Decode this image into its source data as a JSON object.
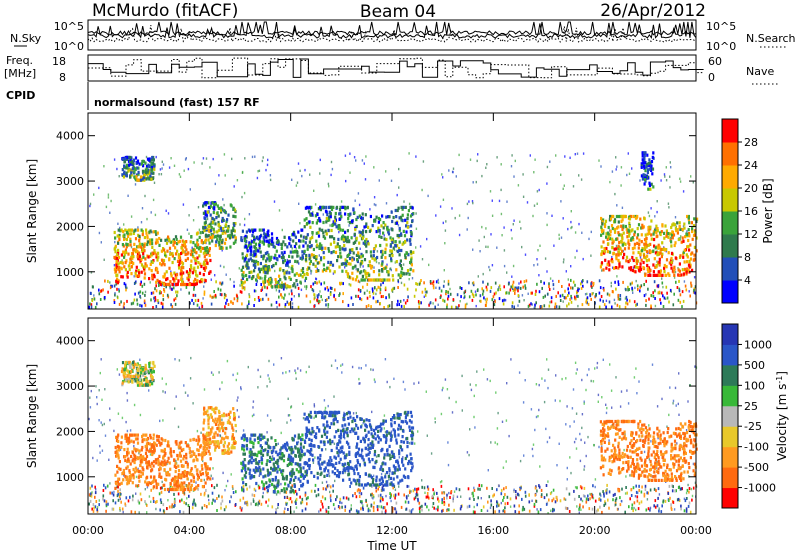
{
  "header": {
    "station": "McMurdo (fitACF)",
    "beam": "Beam 04",
    "date": "26/Apr/2012"
  },
  "noise_panel": {
    "left_label": "N.Sky",
    "right_label": "N.Search",
    "left_ticks": [
      "10^5",
      "10^0"
    ],
    "right_ticks": [
      "10^5",
      "10^0"
    ]
  },
  "freq_panel": {
    "left_label_1": "Freq.",
    "left_label_2": "[MHz]",
    "right_label": "Nave",
    "left_ticks": [
      "18",
      "8"
    ],
    "right_ticks": [
      "60",
      "0"
    ]
  },
  "cpid": {
    "label": "CPID",
    "text": "normalsound (fast) 157 RF"
  },
  "colors": {
    "power_scale": [
      "#0000ff",
      "#224fb8",
      "#2f7a4c",
      "#3aa33a",
      "#c8c800",
      "#ffaa00",
      "#ff7000",
      "#ff0000"
    ],
    "velocity_scale": [
      "#2636b4",
      "#2a56c8",
      "#2d7a58",
      "#38b838",
      "#b8b8b8",
      "#e8c82a",
      "#ff9a20",
      "#ff6a10",
      "#ff0000"
    ]
  },
  "chart_data": [
    {
      "type": "heatmap",
      "panel": "power",
      "ylabel": "Slant Range [km]",
      "ytick_labels": [
        "1000",
        "2000",
        "3000",
        "4000"
      ],
      "ylim": [
        180,
        4500
      ],
      "xlim": [
        "00:00",
        "24:00"
      ],
      "colorbar": {
        "label": "Power [dB]",
        "range": [
          0,
          32
        ],
        "tick_labels": [
          "4",
          "8",
          "12",
          "16",
          "20",
          "24",
          "28"
        ]
      },
      "echo_regions": [
        {
          "start_h": 1.0,
          "end_h": 4.8,
          "range_km": [
            700,
            1900
          ],
          "value": 22
        },
        {
          "start_h": 4.5,
          "end_h": 5.8,
          "range_km": [
            1500,
            2500
          ],
          "value": 12
        },
        {
          "start_h": 1.3,
          "end_h": 2.6,
          "range_km": [
            3000,
            3500
          ],
          "value": 10
        },
        {
          "start_h": 6.0,
          "end_h": 8.5,
          "range_km": [
            650,
            1900
          ],
          "value": 10
        },
        {
          "start_h": 8.5,
          "end_h": 12.8,
          "range_km": [
            800,
            2400
          ],
          "value": 12
        },
        {
          "start_h": 20.2,
          "end_h": 24.0,
          "range_km": [
            900,
            2200
          ],
          "value": 22
        },
        {
          "start_h": 21.8,
          "end_h": 22.3,
          "range_km": [
            2800,
            3600
          ],
          "value": 6
        }
      ]
    },
    {
      "type": "heatmap",
      "panel": "velocity",
      "ylabel": "Slant Range [km]",
      "xlabel": "Time UT",
      "ytick_labels": [
        "1000",
        "2000",
        "3000",
        "4000"
      ],
      "ylim": [
        180,
        4500
      ],
      "xlim": [
        "00:00",
        "24:00"
      ],
      "xtick_labels": [
        "00:00",
        "04:00",
        "08:00",
        "12:00",
        "16:00",
        "20:00",
        "00:00"
      ],
      "colorbar": {
        "label": "Velocity [m s",
        "label_superscript": "-1",
        "label_suffix": "]",
        "tick_labels": [
          "1000",
          "500",
          "100",
          "25",
          "-25",
          "-100",
          "-500",
          "-1000"
        ]
      },
      "echo_regions": [
        {
          "start_h": 1.0,
          "end_h": 4.8,
          "range_km": [
            700,
            1900
          ],
          "value": -300
        },
        {
          "start_h": 4.5,
          "end_h": 5.8,
          "range_km": [
            1500,
            2500
          ],
          "value": -200
        },
        {
          "start_h": 1.3,
          "end_h": 2.6,
          "range_km": [
            3000,
            3500
          ],
          "value": 0
        },
        {
          "start_h": 6.0,
          "end_h": 8.5,
          "range_km": [
            650,
            1900
          ],
          "value": 200
        },
        {
          "start_h": 8.5,
          "end_h": 12.8,
          "range_km": [
            800,
            2400
          ],
          "value": 300
        },
        {
          "start_h": 20.2,
          "end_h": 24.0,
          "range_km": [
            900,
            2200
          ],
          "value": -300
        }
      ]
    }
  ]
}
